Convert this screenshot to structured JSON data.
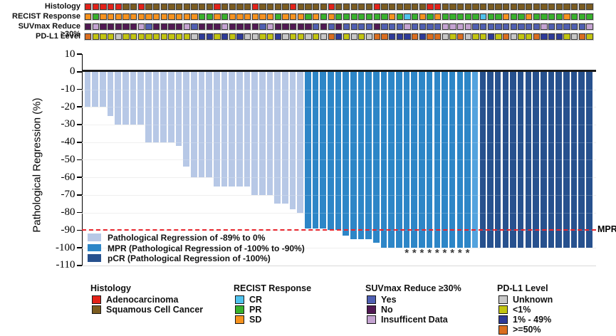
{
  "palette": {
    "adeno": "#e32219",
    "squamous": "#7b5c20",
    "SD": "#f6921e",
    "PR": "#38b12c",
    "CR": "#4fc2ed",
    "yes": "#4f5fb2",
    "no": "#511953",
    "insufficient": "#c4a3d1",
    "unknown": "#c7c7c7",
    "lt1": "#c2c410",
    "pct1_49": "#2d3a99",
    "gte50": "#da6e1f",
    "bar_light": "#b7c8e6",
    "bar_mpr": "#2d86c7",
    "bar_mpr_light": "#54a3de",
    "bar_pcr": "#27518e",
    "mpr_line": "#e8262d"
  },
  "annotation_tracks": [
    {
      "label": "Histology",
      "values": [
        "adeno",
        "adeno",
        "adeno",
        "adeno",
        "adeno",
        "squamous",
        "squamous",
        "adeno",
        "squamous",
        "squamous",
        "squamous",
        "squamous",
        "squamous",
        "squamous",
        "squamous",
        "squamous",
        "squamous",
        "adeno",
        "squamous",
        "squamous",
        "squamous",
        "squamous",
        "adeno",
        "squamous",
        "squamous",
        "squamous",
        "squamous",
        "adeno",
        "squamous",
        "squamous",
        "squamous",
        "squamous",
        "adeno",
        "squamous",
        "squamous",
        "squamous",
        "squamous",
        "squamous",
        "adeno",
        "squamous",
        "squamous",
        "squamous",
        "squamous",
        "squamous",
        "squamous",
        "adeno",
        "adeno",
        "squamous",
        "squamous",
        "squamous",
        "squamous",
        "squamous",
        "squamous",
        "squamous",
        "squamous",
        "squamous",
        "squamous",
        "squamous",
        "squamous",
        "squamous",
        "squamous",
        "squamous",
        "squamous",
        "squamous",
        "squamous",
        "squamous",
        "squamous"
      ]
    },
    {
      "label": "RECIST Response",
      "values": [
        "SD",
        "PR",
        "SD",
        "SD",
        "SD",
        "SD",
        "SD",
        "SD",
        "SD",
        "SD",
        "SD",
        "SD",
        "SD",
        "SD",
        "SD",
        "PR",
        "PR",
        "SD",
        "PR",
        "SD",
        "SD",
        "SD",
        "SD",
        "SD",
        "SD",
        "PR",
        "SD",
        "SD",
        "SD",
        "PR",
        "SD",
        "PR",
        "SD",
        "PR",
        "PR",
        "PR",
        "PR",
        "PR",
        "PR",
        "PR",
        "SD",
        "PR",
        "CR",
        "PR",
        "SD",
        "PR",
        "SD",
        "PR",
        "PR",
        "PR",
        "PR",
        "PR",
        "CR",
        "PR",
        "PR",
        "SD",
        "PR",
        "PR",
        "SD",
        "PR",
        "PR",
        "PR",
        "PR",
        "SD",
        "PR",
        "PR",
        "PR"
      ]
    },
    {
      "label": "SUVmax Reduce ≥30%",
      "values": [
        "no",
        "insufficient",
        "no",
        "no",
        "no",
        "no",
        "no",
        "insufficient",
        "yes",
        "no",
        "no",
        "no",
        "no",
        "insufficient",
        "yes",
        "no",
        "no",
        "no",
        "insufficient",
        "no",
        "no",
        "no",
        "no",
        "yes",
        "insufficient",
        "no",
        "no",
        "no",
        "no",
        "no",
        "yes",
        "no",
        "yes",
        "no",
        "yes",
        "yes",
        "yes",
        "yes",
        "no",
        "yes",
        "yes",
        "yes",
        "insufficient",
        "yes",
        "yes",
        "yes",
        "yes",
        "insufficient",
        "insufficient",
        "insufficient",
        "insufficient",
        "yes",
        "yes",
        "yes",
        "yes",
        "yes",
        "yes",
        "yes",
        "yes",
        "yes",
        "insufficient",
        "yes",
        "yes",
        "yes",
        "yes",
        "yes",
        "insufficient"
      ]
    },
    {
      "label": "PD-L1 Level",
      "values": [
        "gte50",
        "lt1",
        "lt1",
        "lt1",
        "unknown",
        "lt1",
        "lt1",
        "lt1",
        "lt1",
        "lt1",
        "lt1",
        "lt1",
        "lt1",
        "lt1",
        "unknown",
        "pct1_49",
        "pct1_49",
        "lt1",
        "pct1_49",
        "lt1",
        "pct1_49",
        "unknown",
        "unknown",
        "lt1",
        "lt1",
        "pct1_49",
        "unknown",
        "lt1",
        "lt1",
        "unknown",
        "lt1",
        "unknown",
        "gte50",
        "pct1_49",
        "lt1",
        "unknown",
        "lt1",
        "unknown",
        "gte50",
        "gte50",
        "pct1_49",
        "pct1_49",
        "pct1_49",
        "gte50",
        "pct1_49",
        "gte50",
        "gte50",
        "unknown",
        "lt1",
        "gte50",
        "unknown",
        "lt1",
        "lt1",
        "pct1_49",
        "lt1",
        "gte50",
        "unknown",
        "lt1",
        "lt1",
        "gte50",
        "pct1_49",
        "pct1_49",
        "pct1_49",
        "lt1",
        "unknown",
        "gte50",
        "lt1"
      ]
    }
  ],
  "chart_data": {
    "type": "bar",
    "title": "",
    "ylabel": "Pathological Regression (%)",
    "ylim": [
      -110,
      10
    ],
    "yticks": [
      10,
      0,
      -10,
      -20,
      -30,
      -40,
      -50,
      -60,
      -70,
      -80,
      -90,
      -100,
      -110
    ],
    "grid": "light-horizontal",
    "n_patients": 67,
    "values": [
      -20,
      -20,
      -20,
      -25,
      -30,
      -30,
      -30,
      -30,
      -40,
      -40,
      -40,
      -40,
      -42,
      -54,
      -60,
      -60,
      -60,
      -65,
      -65,
      -65,
      -65,
      -65,
      -70,
      -70,
      -70,
      -75,
      -75,
      -78,
      -80,
      -89,
      -89,
      -89,
      -90,
      -90,
      -93,
      -95,
      -95,
      -95,
      -97,
      -100,
      -100,
      -100,
      -100,
      -100,
      -100,
      -100,
      -100,
      -100,
      -100,
      -100,
      -100,
      -100,
      -100,
      -100,
      -100,
      -100,
      -100,
      -100,
      -100,
      -100,
      -100,
      -100,
      -100,
      -100,
      -100,
      -100,
      -100
    ],
    "group_boundaries": {
      "light_end": 29,
      "mpr_end": 52
    },
    "light_shade_mpr_bar": 52,
    "asterisk_bars": [
      43,
      44,
      45,
      46,
      47,
      48,
      49,
      50,
      51
    ],
    "asterisk_symbol": "*",
    "mpr_line_value": -90,
    "mpr_label": "MPR",
    "legend": [
      {
        "key": "bar_light",
        "label": "Pathological Regression of -89% to 0%"
      },
      {
        "key": "bar_mpr",
        "label": "MPR (Pathological Regression of -100% to -90%)"
      },
      {
        "key": "bar_pcr",
        "label": "pCR (Pathological Regression of -100%)"
      }
    ]
  },
  "bottom_legend": [
    {
      "title": "Histology",
      "items": [
        {
          "key": "adeno",
          "label": "Adenocarcinoma"
        },
        {
          "key": "squamous",
          "label": "Squamous Cell Cancer"
        }
      ]
    },
    {
      "title": "RECIST Response",
      "items": [
        {
          "key": "CR",
          "label": "CR"
        },
        {
          "key": "PR",
          "label": "PR"
        },
        {
          "key": "SD",
          "label": "SD"
        }
      ]
    },
    {
      "title": "SUVmax Reduce ≥30%",
      "items": [
        {
          "key": "yes",
          "label": "Yes"
        },
        {
          "key": "no",
          "label": "No"
        },
        {
          "key": "insufficient",
          "label": "Insufficent Data"
        }
      ]
    },
    {
      "title": "PD-L1 Level",
      "items": [
        {
          "key": "unknown",
          "label": "Unknown"
        },
        {
          "key": "lt1",
          "label": "<1%"
        },
        {
          "key": "pct1_49",
          "label": "1% - 49%"
        },
        {
          "key": "gte50",
          "label": ">=50%"
        }
      ]
    }
  ]
}
